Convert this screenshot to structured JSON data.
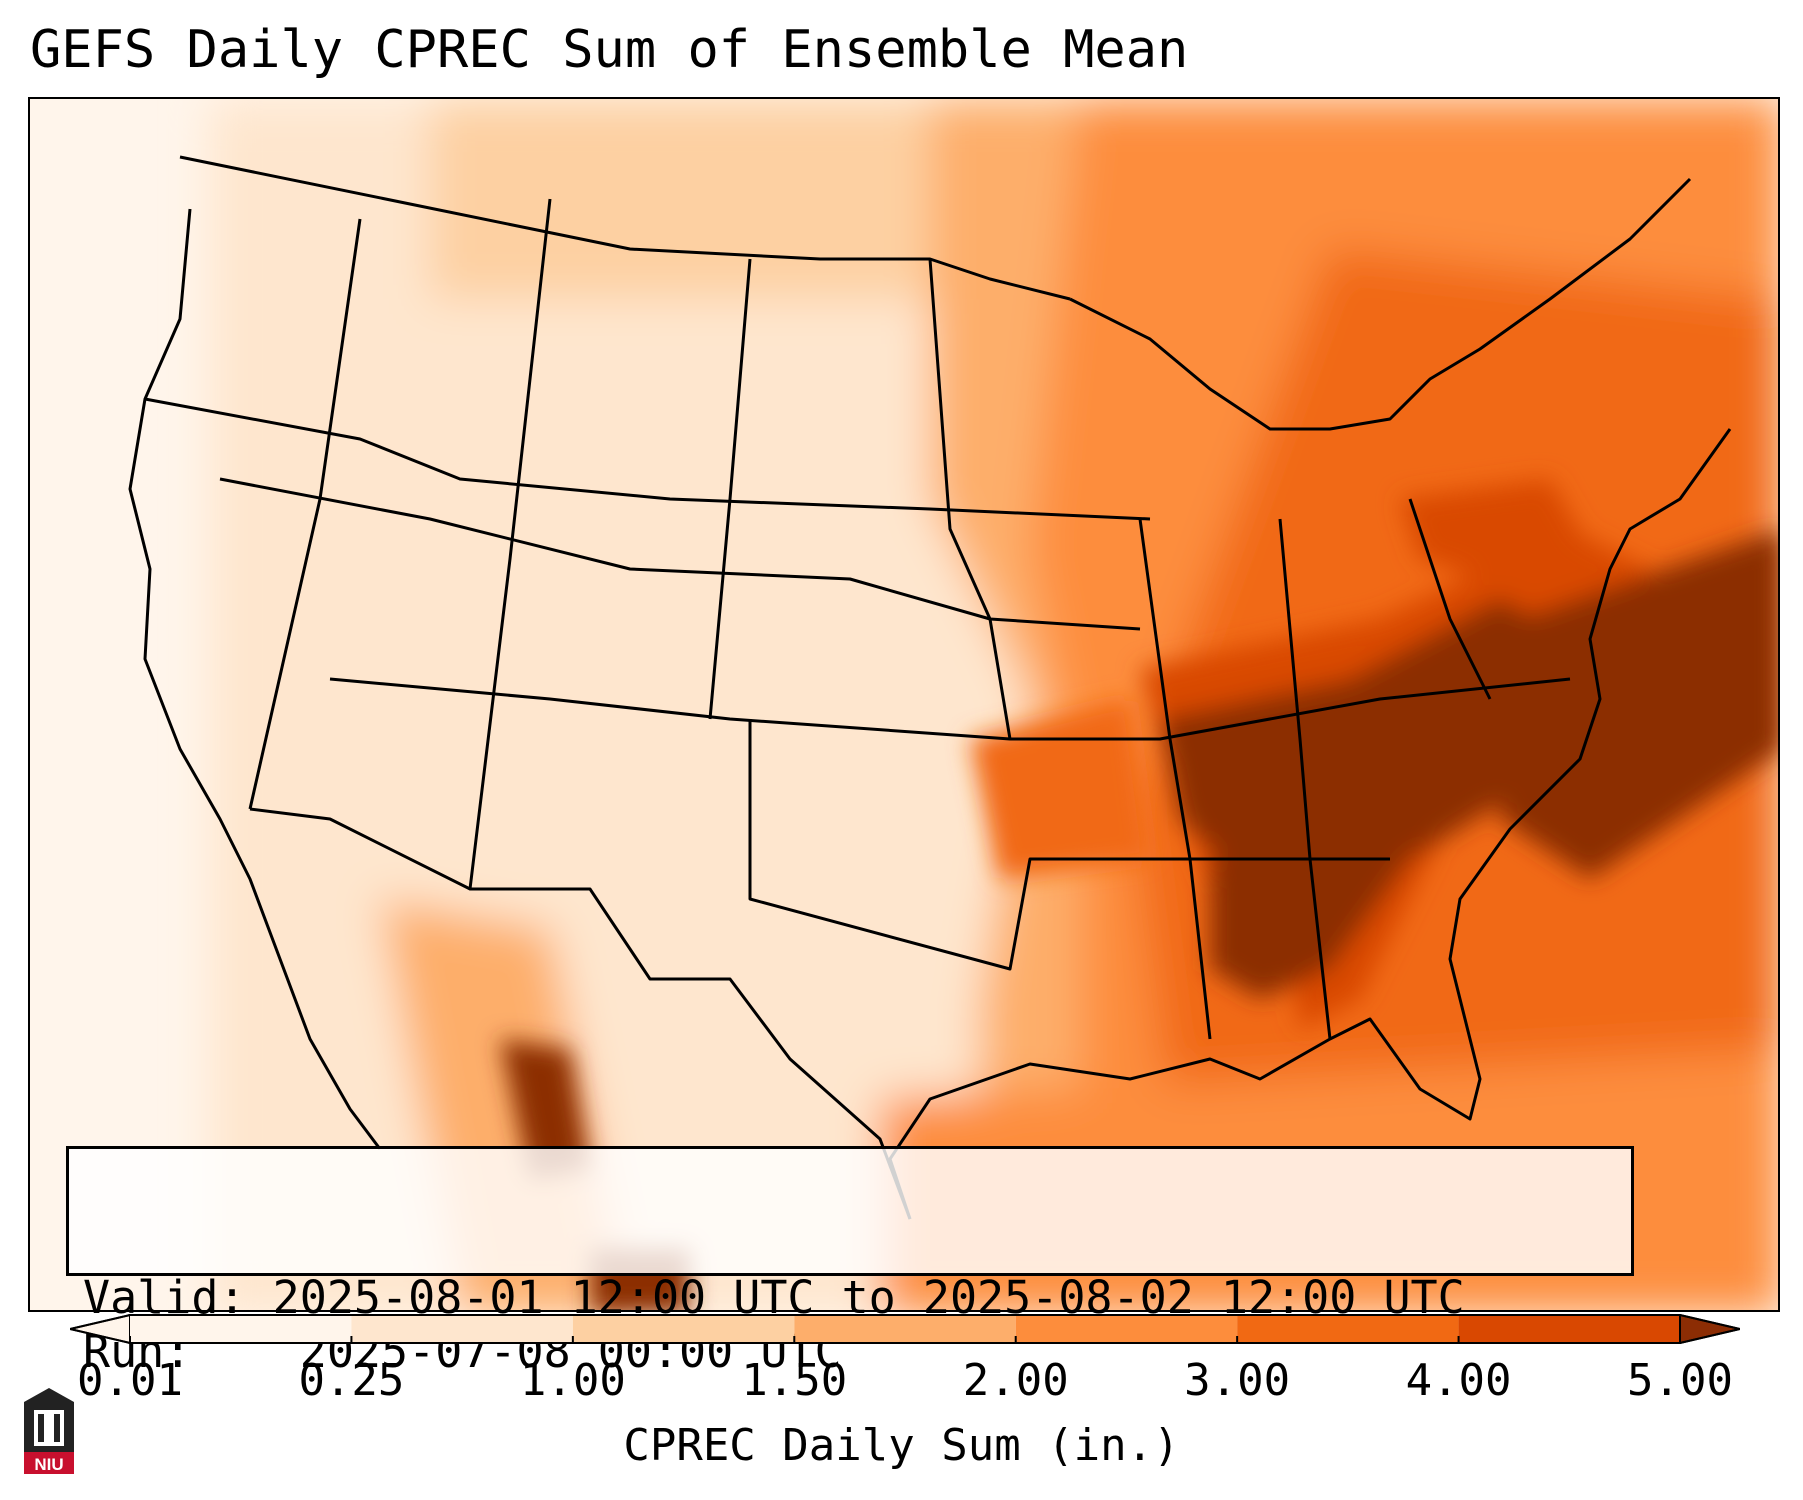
{
  "title": "GEFS Daily CPREC Sum of Ensemble Mean",
  "info": {
    "valid_label": "Valid:",
    "valid_value": "2025-08-01 12:00 UTC to 2025-08-02 12:00 UTC",
    "run_label": "Run:",
    "run_value": "2025-07-08 00:00 UTC"
  },
  "colorbar": {
    "ticks": [
      "0.01",
      "0.25",
      "1.00",
      "1.50",
      "2.00",
      "3.00",
      "4.00",
      "5.00"
    ],
    "label": "CPREC Daily Sum (in.)",
    "colors": [
      "#fff5eb",
      "#fee6ce",
      "#fdd0a2",
      "#fdae6b",
      "#fd8d3c",
      "#f16913",
      "#d94801",
      "#8c2d04"
    ],
    "extend": "both"
  },
  "logo": {
    "text": "NIU",
    "color": "#c8102e"
  }
}
